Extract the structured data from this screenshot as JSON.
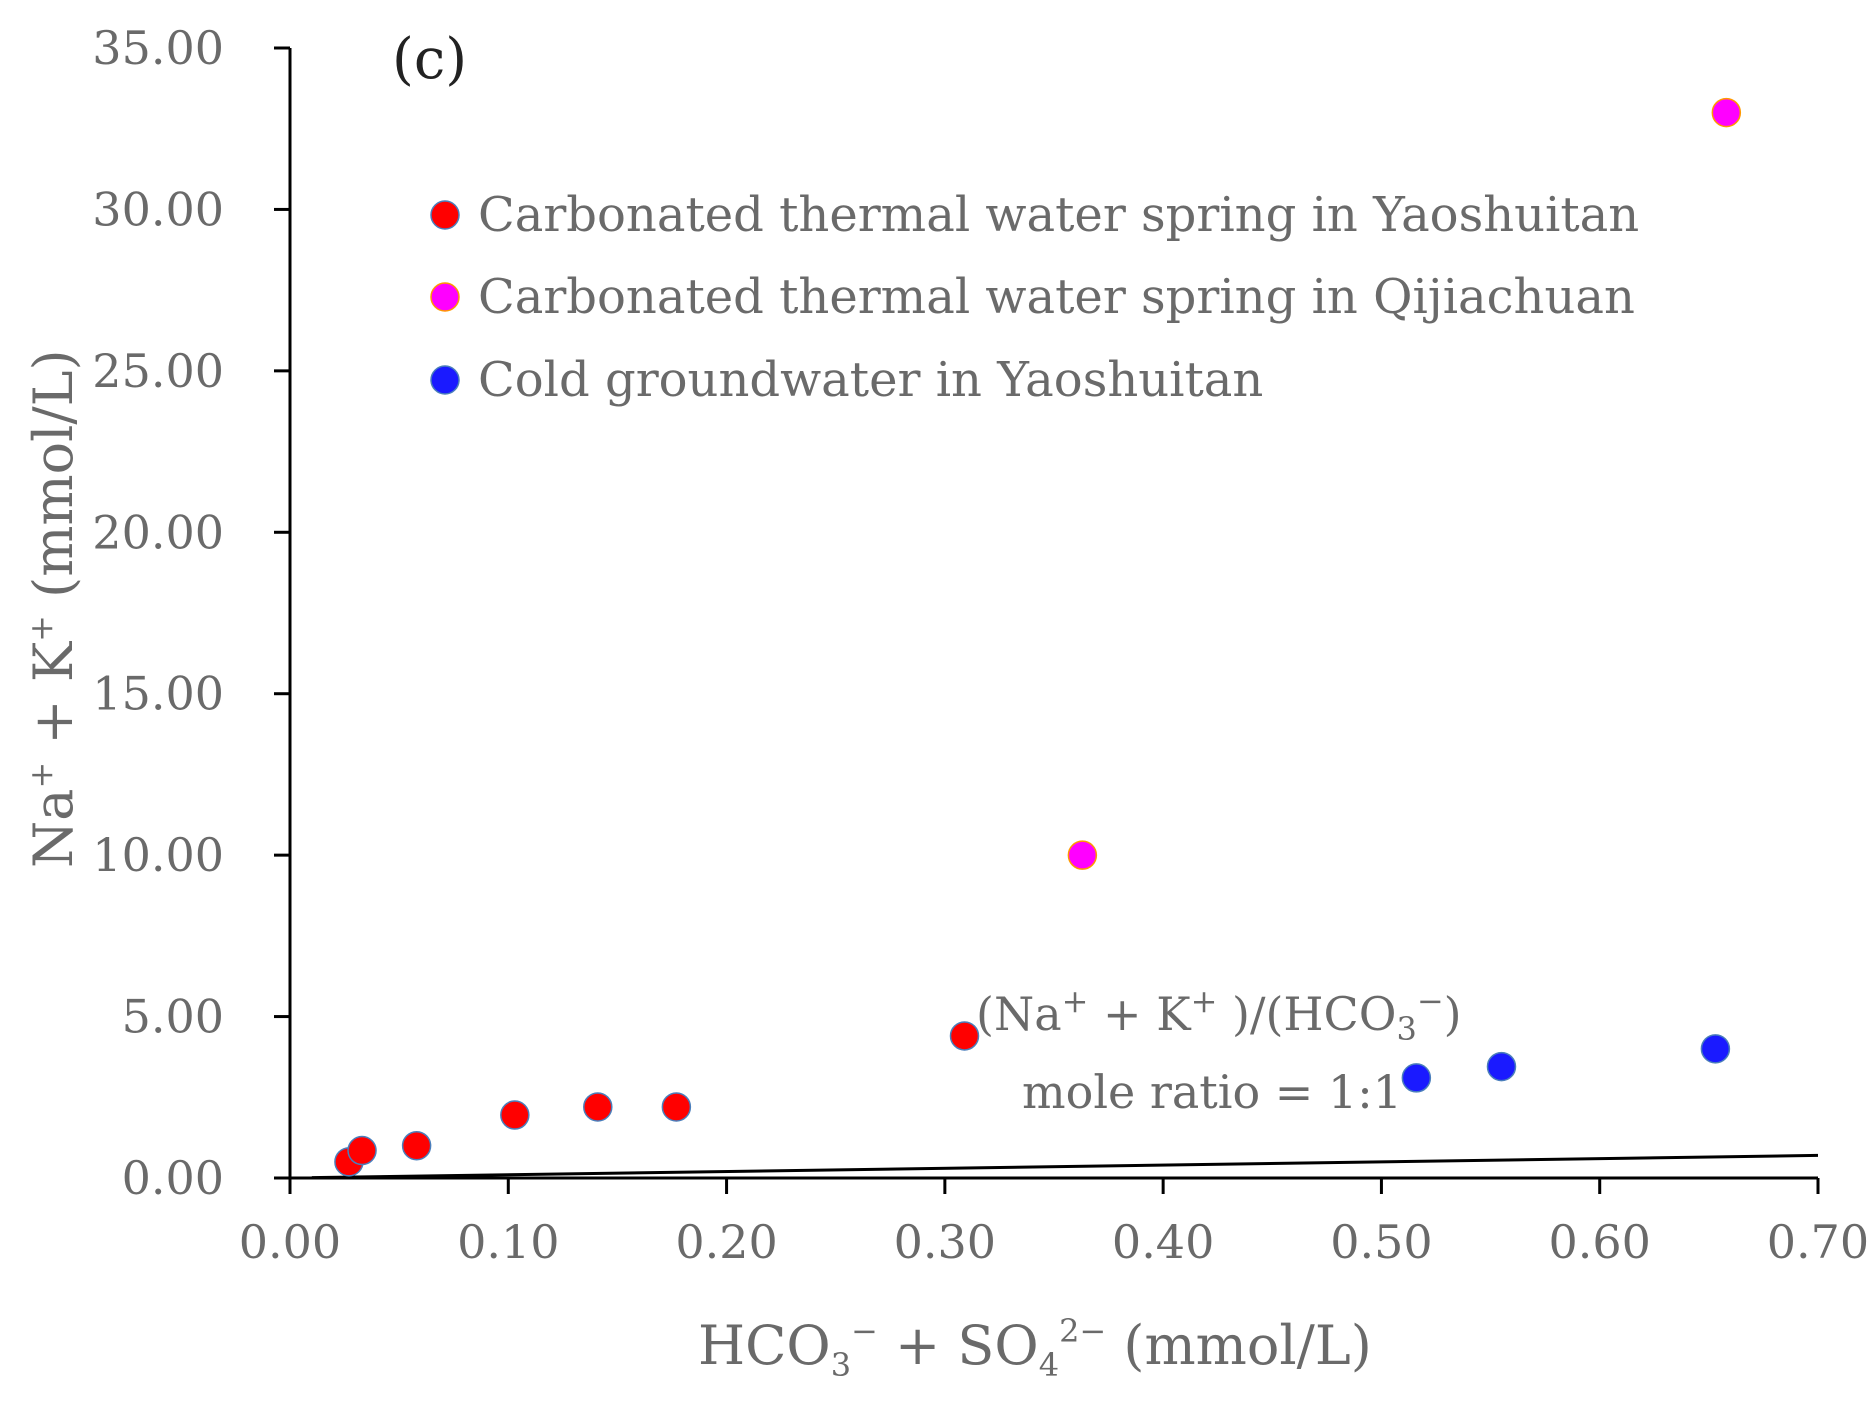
{
  "chart_data": {
    "type": "scatter",
    "panel_label": "(c)",
    "xlabel": "HCO3− + SO42− (mmol/L)",
    "ylabel": "Na+ + K+ (mmol/L)",
    "xlabel_parts": {
      "a": "HCO",
      "a_sub": "3",
      "a_sup": "−",
      "plus": " + SO",
      "b_sub": "4",
      "b_sup": "2−",
      "unit": " (mmol/L)"
    },
    "ylabel_parts": {
      "a": "Na",
      "a_sup": "+",
      "plus": " + K",
      "b_sup": "+",
      "unit": " (mmol/L)"
    },
    "xlim": [
      0,
      0.7
    ],
    "ylim": [
      0,
      35
    ],
    "x_ticks": [
      0,
      0.1,
      0.2,
      0.3,
      0.4,
      0.5,
      0.6,
      0.7
    ],
    "x_tick_labels": [
      "0.00",
      "0.10",
      "0.20",
      "0.30",
      "0.40",
      "0.50",
      "0.60",
      "0.70"
    ],
    "y_ticks": [
      0,
      5,
      10,
      15,
      20,
      25,
      30,
      35
    ],
    "y_tick_labels": [
      "0.00",
      "5.00",
      "10.00",
      "15.00",
      "20.00",
      "25.00",
      "30.00",
      "35.00"
    ],
    "legend_position": "top-left",
    "series": [
      {
        "name": "Carbonated thermal water spring in Yaoshuitan",
        "color": "#ff0000",
        "points": [
          [
            0.027,
            0.5
          ],
          [
            0.033,
            0.85
          ],
          [
            0.058,
            1.0
          ],
          [
            0.103,
            1.95
          ],
          [
            0.141,
            2.2
          ],
          [
            0.177,
            2.2
          ],
          [
            0.309,
            4.4
          ]
        ]
      },
      {
        "name": "Carbonated thermal water spring in Qijiachuan",
        "color": "#ff00ff",
        "points": [
          [
            0.363,
            10.0
          ],
          [
            0.658,
            33.0
          ]
        ]
      },
      {
        "name": "Cold groundwater in Yaoshuitan",
        "color": "#1a1aff",
        "points": [
          [
            0.516,
            3.1
          ],
          [
            0.555,
            3.45
          ],
          [
            0.653,
            4.0
          ]
        ]
      }
    ],
    "reference_line": {
      "label": "(Na+ + K+)/(HCO3−) mole ratio = 1:1",
      "x": [
        0.01,
        0.7
      ],
      "y": [
        0.01,
        0.7
      ]
    },
    "annotation": {
      "line1": {
        "a": "(Na",
        "a_sup": "+",
        "mid": " + K",
        "b_sup": "+",
        "tail": " )/(HCO",
        "c_sub": "3",
        "c_sup": "−",
        "end": ")"
      },
      "line2": "mole ratio =  1:1"
    }
  }
}
